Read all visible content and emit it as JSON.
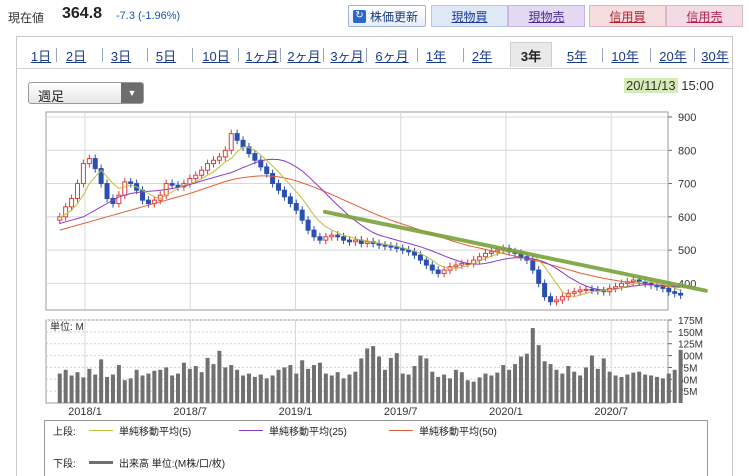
{
  "header": {
    "price_label": "現在値",
    "price_value": "364.8",
    "price_change": "-7.3 (-1.96%)",
    "update_label": "株価更新",
    "buttons": {
      "buy": "現物買",
      "sell": "現物売",
      "margin_buy": "信用買",
      "margin_sell": "信用売"
    }
  },
  "tabs": [
    "1日",
    "2日",
    "3日",
    "5日",
    "10日",
    "1ヶ月",
    "2ヶ月",
    "3ヶ月",
    "6ヶ月",
    "1年",
    "2年",
    "3年",
    "5年",
    "10年",
    "20年",
    "30年"
  ],
  "active_tab": "3年",
  "period_select": "週足",
  "timestamp": {
    "date": "20/11/13",
    "time": "15:00"
  },
  "legend": {
    "upper_label": "上段:",
    "lower_label": "下段:",
    "ma5": "単純移動平均(5)",
    "ma25": "単純移動平均(25)",
    "ma50": "単純移動平均(50)",
    "volume": "出来高 単位:(M株/口/枚)"
  },
  "colors": {
    "up": "#e23a3a",
    "down": "#2a4fb0",
    "ma5": "#bdbd3a",
    "ma25": "#8a3cc6",
    "ma50": "#e0603a",
    "trend": "#7aa33a",
    "volume": "#707070"
  },
  "chart_data": [
    {
      "type": "candlestick",
      "x_ticks": [
        "2018/1",
        "2018/7",
        "2019/1",
        "2019/7",
        "2020/1",
        "2020/7"
      ],
      "y_ticks": [
        "900",
        "800",
        "700",
        "600",
        "500",
        "400"
      ],
      "ylim": [
        320,
        915
      ],
      "close": [
        600,
        630,
        655,
        700,
        760,
        775,
        745,
        700,
        655,
        640,
        665,
        705,
        700,
        680,
        650,
        640,
        650,
        665,
        700,
        695,
        690,
        700,
        715,
        725,
        740,
        760,
        770,
        780,
        800,
        850,
        830,
        810,
        790,
        770,
        750,
        730,
        700,
        680,
        660,
        640,
        620,
        590,
        560,
        540,
        530,
        540,
        545,
        540,
        530,
        525,
        530,
        520,
        525,
        520,
        515,
        512,
        510,
        505,
        500,
        495,
        485,
        470,
        455,
        440,
        430,
        440,
        450,
        455,
        460,
        460,
        470,
        480,
        490,
        495,
        500,
        505,
        495,
        490,
        480,
        470,
        440,
        400,
        360,
        345,
        350,
        360,
        370,
        375,
        380,
        382,
        380,
        378,
        375,
        385,
        390,
        400,
        405,
        410,
        405,
        400,
        395,
        390,
        385,
        375,
        370,
        364.8
      ],
      "ma5": [
        598,
        608,
        620,
        640,
        665,
        700,
        720,
        740,
        720,
        700,
        685,
        690,
        695,
        690,
        680,
        670,
        660,
        655,
        665,
        675,
        685,
        695,
        700,
        705,
        715,
        725,
        735,
        750,
        765,
        775,
        795,
        810,
        808,
        800,
        785,
        770,
        752,
        735,
        715,
        695,
        675,
        655,
        630,
        605,
        585,
        570,
        560,
        552,
        545,
        540,
        535,
        530,
        528,
        524,
        521,
        518,
        515,
        511,
        507,
        502,
        497,
        490,
        480,
        470,
        456,
        449,
        447,
        445,
        448,
        453,
        460,
        467,
        475,
        482,
        488,
        494,
        497,
        498,
        497,
        494,
        489,
        470,
        450,
        425,
        400,
        375,
        365,
        360,
        365,
        370,
        375,
        377,
        378,
        380,
        382,
        386,
        392,
        399,
        404,
        406,
        404,
        401,
        397,
        392,
        386,
        378
      ],
      "ma25": [
        580,
        585,
        590,
        595,
        600,
        610,
        620,
        630,
        640,
        650,
        660,
        665,
        670,
        673,
        675,
        677,
        678,
        680,
        682,
        685,
        688,
        692,
        697,
        702,
        708,
        713,
        718,
        723,
        728,
        733,
        740,
        748,
        755,
        762,
        768,
        772,
        773,
        772,
        768,
        760,
        750,
        738,
        722,
        705,
        688,
        670,
        652,
        635,
        618,
        602,
        588,
        575,
        563,
        553,
        545,
        540,
        535,
        530,
        525,
        520,
        515,
        510,
        504,
        497,
        490,
        483,
        476,
        470,
        464,
        460,
        458,
        458,
        460,
        464,
        468,
        472,
        475,
        477,
        477,
        476,
        474,
        470,
        464,
        455,
        445,
        433,
        420,
        410,
        400,
        392,
        386,
        382,
        380,
        381,
        383,
        386,
        389,
        392,
        394,
        396,
        396,
        395,
        394,
        393,
        391,
        389
      ],
      "ma50": [
        560,
        565,
        570,
        575,
        580,
        585,
        590,
        595,
        600,
        605,
        610,
        615,
        620,
        625,
        630,
        635,
        640,
        645,
        650,
        655,
        660,
        665,
        670,
        676,
        682,
        688,
        694,
        700,
        706,
        711,
        715,
        718,
        720,
        722,
        723,
        723,
        722,
        720,
        717,
        713,
        708,
        702,
        696,
        689,
        682,
        675,
        667,
        659,
        651,
        643,
        635,
        627,
        619,
        611,
        604,
        597,
        590,
        584,
        578,
        572,
        566,
        560,
        554,
        548,
        542,
        536,
        530,
        524,
        519,
        514,
        510,
        506,
        502,
        498,
        494,
        490,
        486,
        482,
        478,
        474,
        470,
        466,
        461,
        456,
        451,
        446,
        441,
        436,
        431,
        427,
        423,
        419,
        415,
        412,
        409,
        406,
        404,
        402,
        400,
        398,
        396,
        394,
        392,
        390,
        389,
        388
      ],
      "trend": [
        [
          2019.14,
          615
        ],
        [
          2020.95,
          378
        ]
      ]
    },
    {
      "type": "bar",
      "label": "単位: M",
      "y_ticks": [
        "175M",
        "150M",
        "125M",
        "100M",
        "75M",
        "50M",
        "25M"
      ],
      "ylim": [
        0,
        175
      ],
      "values": [
        62,
        70,
        58,
        65,
        54,
        72,
        60,
        92,
        55,
        60,
        80,
        48,
        52,
        70,
        58,
        62,
        68,
        70,
        75,
        58,
        62,
        85,
        72,
        78,
        65,
        95,
        82,
        110,
        75,
        80,
        70,
        58,
        62,
        55,
        60,
        52,
        58,
        70,
        75,
        80,
        62,
        90,
        72,
        80,
        85,
        62,
        58,
        65,
        52,
        60,
        66,
        94,
        115,
        120,
        98,
        70,
        95,
        105,
        62,
        60,
        78,
        100,
        94,
        66,
        55,
        60,
        52,
        70,
        65,
        48,
        45,
        54,
        62,
        58,
        64,
        80,
        70,
        82,
        98,
        104,
        158,
        122,
        88,
        82,
        70,
        62,
        78,
        66,
        58,
        75,
        100,
        72,
        94,
        66,
        58,
        55,
        60,
        64,
        66,
        60,
        58,
        55,
        52,
        62,
        70,
        112
      ]
    }
  ]
}
